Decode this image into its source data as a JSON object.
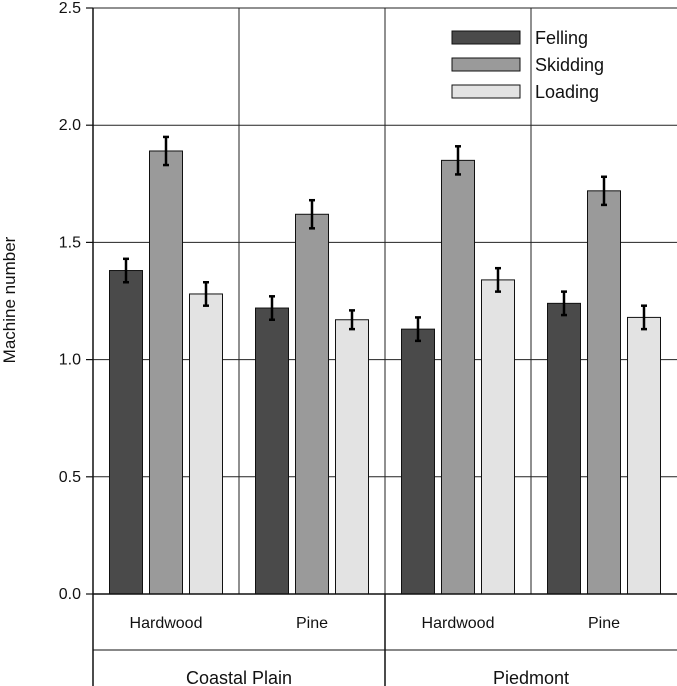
{
  "chart_data": {
    "type": "bar",
    "title": "",
    "xlabel": "",
    "ylabel": "Machine number",
    "ylim": [
      0,
      2.5
    ],
    "yticks": [
      "0.0",
      "0.5",
      "1.0",
      "1.5",
      "2.0",
      "2.5"
    ],
    "grid": true,
    "legend_position": "top-right",
    "groups": [
      "Coastal Plain",
      "Piedmont"
    ],
    "categories": [
      "Hardwood",
      "Pine",
      "Hardwood",
      "Pine"
    ],
    "category_group": [
      0,
      0,
      1,
      1
    ],
    "series": [
      {
        "name": "Felling",
        "color": "#4a4a4a",
        "values": [
          1.38,
          1.22,
          1.13,
          1.24
        ],
        "errors": [
          0.05,
          0.05,
          0.05,
          0.05
        ]
      },
      {
        "name": "Skidding",
        "color": "#9a9a9a",
        "values": [
          1.89,
          1.62,
          1.85,
          1.72
        ],
        "errors": [
          0.06,
          0.06,
          0.06,
          0.06
        ]
      },
      {
        "name": "Loading",
        "color": "#e3e3e3",
        "values": [
          1.28,
          1.17,
          1.34,
          1.18
        ],
        "errors": [
          0.05,
          0.04,
          0.05,
          0.05
        ]
      }
    ]
  }
}
